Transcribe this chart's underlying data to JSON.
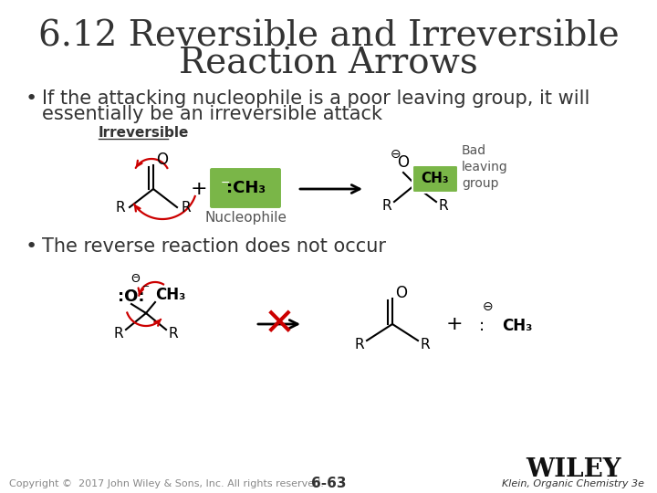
{
  "title_line1": "6.12 Reversible and Irreversible",
  "title_line2": "Reaction Arrows",
  "title_fontsize": 28,
  "title_color": "#333333",
  "bg_color": "#ffffff",
  "bullet1_line1": "If the attacking nucleophile is a poor leaving group, it will",
  "bullet1_line2": "essentially be an irreversible attack",
  "bullet2": "The reverse reaction does not occur",
  "bullet_fontsize": 15,
  "bullet_color": "#333333",
  "irreversible_label": "Irreversible",
  "nucleophile_label": "Nucleophile",
  "bad_leaving_label": "Bad\nleaving\ngroup",
  "green_box_color": "#7ab648",
  "red_color": "#cc0000",
  "arrow_color": "#333333",
  "copyright_text": "Copyright ©  2017 John Wiley & Sons, Inc. All rights reserved.",
  "page_num": "6-63",
  "wiley_text": "WILEY",
  "klein_text": "Klein, Organic Chemistry 3e",
  "footer_fontsize": 9
}
